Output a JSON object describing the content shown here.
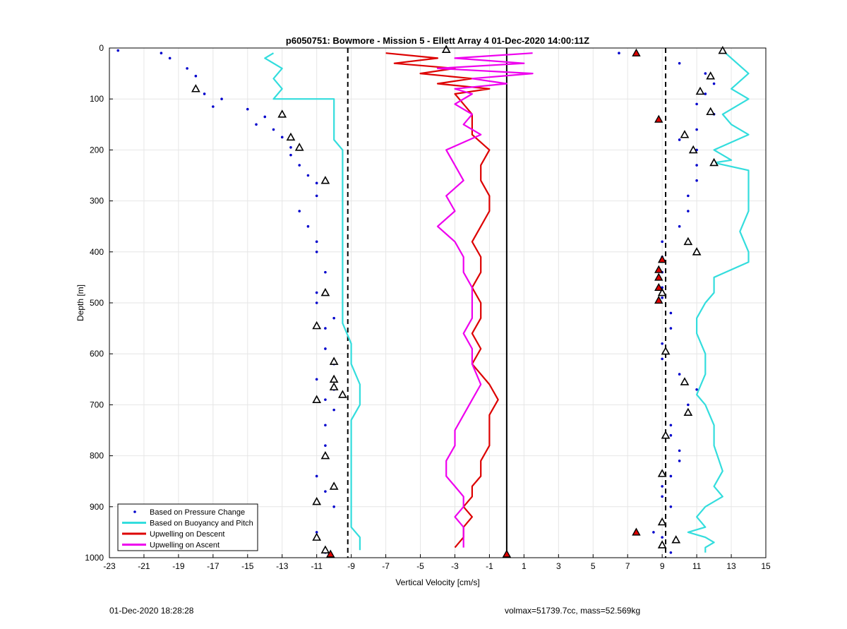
{
  "chart_data": {
    "type": "scatter",
    "title": "p6050751: Bowmore - Mission 5 - Ellett Array 4 01-Dec-2020 14:00:11Z",
    "xlabel": "Vertical Velocity [cm/s]",
    "ylabel": "Depth [m]",
    "xlim": [
      -23,
      15
    ],
    "ylim": [
      1000,
      0
    ],
    "y_reversed": true,
    "grid": true,
    "legend_position": "bottom-left",
    "x_ticks": [
      "-23",
      "-21",
      "-19",
      "-17",
      "-15",
      "-13",
      "-11",
      "-9",
      "-7",
      "-5",
      "-3",
      "-1",
      "1",
      "3",
      "5",
      "7",
      "9",
      "11",
      "13",
      "15"
    ],
    "y_ticks": [
      "0",
      "100",
      "200",
      "300",
      "400",
      "500",
      "600",
      "700",
      "800",
      "900",
      "1000"
    ],
    "series": [
      {
        "name": "Based on Pressure Change",
        "style": "dots",
        "color": "#0000cc",
        "branches": [
          {
            "x": [
              -22.5,
              -20,
              -19.5,
              -18.5,
              -18,
              -18,
              -16.5,
              -17,
              -17.5,
              -15,
              -14,
              -14.5,
              -13.5,
              -13,
              -12.5,
              -12.5,
              -12,
              -11.5,
              -11,
              -11,
              -12,
              -11.5,
              -11,
              -11,
              -10.5,
              -11,
              -11,
              -10,
              -10.5,
              -10.5,
              -10,
              -11,
              -10,
              -10.5,
              -10,
              -10.5,
              -10.5,
              -10.5,
              -11,
              -10.5,
              -10,
              -11,
              -10.5
            ],
            "y": [
              5,
              10,
              20,
              40,
              55,
              80,
              100,
              115,
              90,
              120,
              135,
              150,
              160,
              175,
              195,
              210,
              230,
              250,
              265,
              290,
              320,
              350,
              380,
              400,
              440,
              480,
              500,
              530,
              550,
              590,
              620,
              650,
              670,
              690,
              710,
              740,
              780,
              800,
              840,
              870,
              900,
              950,
              990
            ]
          },
          {
            "x": [
              6.5,
              10,
              11.5,
              12,
              11.5,
              11,
              12,
              11,
              10,
              11,
              11,
              11,
              10.5,
              10.5,
              10,
              9,
              9,
              9,
              9,
              9,
              9.5,
              9.5,
              9,
              9,
              10,
              11,
              10.5,
              9.5,
              9.5,
              10,
              10,
              9.5,
              9,
              9,
              9.5,
              9,
              8.5,
              9,
              9,
              9.5
            ],
            "y": [
              10,
              30,
              50,
              70,
              90,
              110,
              130,
              160,
              180,
              200,
              230,
              260,
              290,
              320,
              350,
              380,
              410,
              440,
              470,
              490,
              520,
              550,
              580,
              610,
              640,
              670,
              700,
              740,
              760,
              790,
              810,
              840,
              860,
              880,
              900,
              930,
              950,
              960,
              975,
              990
            ]
          }
        ]
      },
      {
        "name": "Based on Buoyancy and Pitch",
        "style": "line",
        "color": "#33dddd",
        "branches": [
          {
            "x": [
              -13.5,
              -14,
              -13,
              -13.5,
              -13,
              -13.5,
              -10,
              -10,
              -10,
              -10,
              -9.5,
              -9.5,
              -9.5,
              -9.5,
              -9.5,
              -9.5,
              -9.5,
              -9.5,
              -9.5,
              -9.5,
              -9,
              -9,
              -8.5,
              -8.5,
              -9,
              -9,
              -9,
              -9,
              -9,
              -9,
              -9,
              -9,
              -8.5,
              -8.5,
              -8.5
            ],
            "y": [
              10,
              20,
              40,
              60,
              80,
              100,
              100,
              130,
              150,
              180,
              200,
              220,
              260,
              300,
              340,
              380,
              420,
              460,
              500,
              540,
              580,
              620,
              660,
              700,
              730,
              760,
              800,
              840,
              880,
              900,
              920,
              940,
              960,
              975,
              985
            ]
          },
          {
            "x": [
              12.5,
              13,
              14,
              13,
              14,
              12.5,
              13,
              14,
              12,
              13,
              12,
              14,
              14,
              14,
              13.5,
              14,
              14,
              14,
              12,
              12,
              11.5,
              11,
              11,
              11.5,
              11.5,
              11,
              11.5,
              12,
              12,
              12.5,
              12,
              12.5,
              11.5,
              11,
              11.5,
              10.5,
              11.5,
              12,
              11.5,
              11.5
            ],
            "y": [
              5,
              20,
              50,
              80,
              100,
              130,
              150,
              170,
              200,
              220,
              225,
              240,
              280,
              320,
              360,
              400,
              410,
              420,
              450,
              480,
              500,
              530,
              560,
              600,
              640,
              680,
              700,
              740,
              780,
              830,
              860,
              880,
              900,
              920,
              940,
              950,
              960,
              970,
              980,
              990
            ]
          }
        ]
      },
      {
        "name": "Upwelling on Descent",
        "style": "line",
        "color": "#dd0000",
        "x": [
          -7,
          -4,
          -6.5,
          -3,
          -5,
          -2,
          -4,
          -1,
          -3,
          -2.5,
          -2,
          -2,
          -2,
          -1,
          -1.5,
          -1.5,
          -1,
          -1,
          -1.5,
          -2,
          -1.5,
          -1.5,
          -2,
          -1.5,
          -1.5,
          -2,
          -1.5,
          -2,
          -1,
          -0.5,
          -1,
          -1,
          -1,
          -1.5,
          -1.5,
          -2,
          -2,
          -2.5,
          -2,
          -2.5,
          -2.5,
          -3
        ],
        "y": [
          10,
          20,
          30,
          40,
          50,
          60,
          70,
          80,
          90,
          110,
          130,
          150,
          170,
          200,
          230,
          260,
          290,
          320,
          350,
          380,
          410,
          440,
          470,
          500,
          530,
          560,
          590,
          620,
          660,
          690,
          720,
          750,
          780,
          810,
          840,
          860,
          880,
          900,
          920,
          940,
          960,
          980
        ]
      },
      {
        "name": "Upwelling on Ascent",
        "style": "line",
        "color": "#ee00ee",
        "x": [
          1.5,
          -3,
          1,
          -4,
          1.5,
          -2,
          0,
          -3,
          -2,
          -3,
          -2,
          -2.5,
          -1.5,
          -3.5,
          -3,
          -2.5,
          -3.5,
          -3,
          -4,
          -3,
          -2.5,
          -2.5,
          -2,
          -2,
          -2,
          -2.5,
          -2,
          -2,
          -1.5,
          -2,
          -2.5,
          -3,
          -3,
          -3.5,
          -3.5,
          -3,
          -2.5,
          -2.5,
          -3,
          -2.5,
          -2.5,
          -2.5
        ],
        "y": [
          10,
          20,
          30,
          40,
          50,
          60,
          70,
          80,
          90,
          110,
          130,
          150,
          170,
          200,
          230,
          260,
          290,
          320,
          350,
          380,
          410,
          440,
          470,
          500,
          530,
          560,
          590,
          620,
          660,
          690,
          720,
          750,
          780,
          810,
          840,
          860,
          880,
          900,
          920,
          940,
          960,
          980
        ]
      }
    ],
    "reference_lines": [
      {
        "x": -9.2,
        "style": "dashed",
        "color": "#000000"
      },
      {
        "x": 9.2,
        "style": "dashed",
        "color": "#000000"
      },
      {
        "x": 0,
        "style": "solid",
        "color": "#000000"
      }
    ],
    "open_triangle_markers": [
      {
        "x": 12.5,
        "y": 5
      },
      {
        "x": 11.8,
        "y": 55
      },
      {
        "x": 11.2,
        "y": 85
      },
      {
        "x": 11.8,
        "y": 125
      },
      {
        "x": 10.3,
        "y": 170
      },
      {
        "x": 10.8,
        "y": 200
      },
      {
        "x": 12,
        "y": 225
      },
      {
        "x": 10.5,
        "y": 380
      },
      {
        "x": 11,
        "y": 400
      },
      {
        "x": 9,
        "y": 480
      },
      {
        "x": 9.2,
        "y": 595
      },
      {
        "x": 10.3,
        "y": 655
      },
      {
        "x": 10.5,
        "y": 715
      },
      {
        "x": 9.2,
        "y": 760
      },
      {
        "x": 9,
        "y": 835
      },
      {
        "x": 9,
        "y": 930
      },
      {
        "x": 9.8,
        "y": 965
      },
      {
        "x": 9,
        "y": 975
      },
      {
        "x": -3.5,
        "y": 3
      },
      {
        "x": -18,
        "y": 80
      },
      {
        "x": -13,
        "y": 130
      },
      {
        "x": -12.5,
        "y": 175
      },
      {
        "x": -12,
        "y": 195
      },
      {
        "x": -10.5,
        "y": 260
      },
      {
        "x": -10.5,
        "y": 480
      },
      {
        "x": -11,
        "y": 545
      },
      {
        "x": -10,
        "y": 615
      },
      {
        "x": -10,
        "y": 650
      },
      {
        "x": -10,
        "y": 665
      },
      {
        "x": -9.5,
        "y": 680
      },
      {
        "x": -11,
        "y": 690
      },
      {
        "x": -10.5,
        "y": 800
      },
      {
        "x": -10,
        "y": 860
      },
      {
        "x": -11,
        "y": 890
      },
      {
        "x": -11,
        "y": 960
      },
      {
        "x": -10.5,
        "y": 985
      }
    ],
    "filled_triangle_markers": [
      {
        "x": 7.5,
        "y": 10
      },
      {
        "x": 8.8,
        "y": 140
      },
      {
        "x": 9,
        "y": 415
      },
      {
        "x": 8.8,
        "y": 435
      },
      {
        "x": 8.8,
        "y": 450
      },
      {
        "x": 8.8,
        "y": 470
      },
      {
        "x": 8.8,
        "y": 495
      },
      {
        "x": 7.5,
        "y": 950
      },
      {
        "x": 0,
        "y": 993
      },
      {
        "x": -10.2,
        "y": 993
      }
    ]
  },
  "footer": {
    "timestamp": "01-Dec-2020 18:28:28",
    "volmax_mass": "volmax=51739.7cc, mass=52.569kg"
  }
}
